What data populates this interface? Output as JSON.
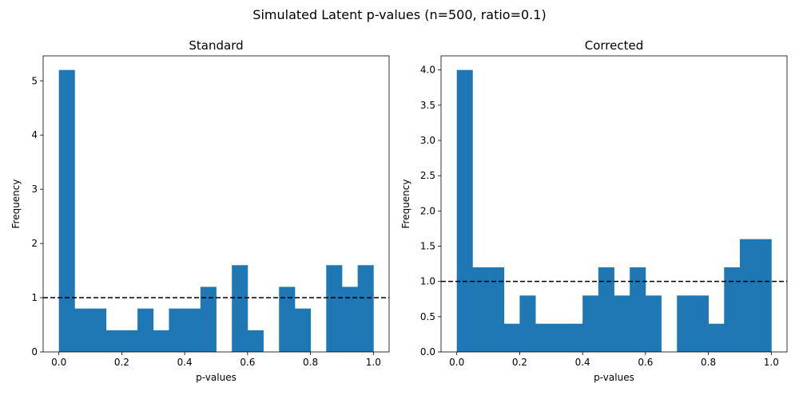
{
  "figure": {
    "suptitle": "Simulated Latent p-values (n=500, ratio=0.1)"
  },
  "style": {
    "bar_color": "#1f77b4",
    "reference_line_color": "#000000",
    "axis_color": "#000000"
  },
  "chart_data": [
    {
      "type": "bar",
      "title": "Standard",
      "xlabel": "p-values",
      "ylabel": "Frequency",
      "bin_edges": [
        0.0,
        0.05,
        0.1,
        0.15,
        0.2,
        0.25,
        0.3,
        0.35,
        0.4,
        0.45,
        0.5,
        0.55,
        0.6,
        0.65,
        0.7,
        0.75,
        0.8,
        0.85,
        0.9,
        0.95,
        1.0
      ],
      "values": [
        5.2,
        0.8,
        0.8,
        0.4,
        0.4,
        0.8,
        0.4,
        0.8,
        0.8,
        1.2,
        0.0,
        1.6,
        0.4,
        0.0,
        1.2,
        0.8,
        0.0,
        1.6,
        1.2,
        1.6
      ],
      "reference_line": {
        "y": 1.0,
        "style": "dashed"
      },
      "xlim": [
        -0.05,
        1.05
      ],
      "ylim": [
        0,
        5.46
      ],
      "xticks": [
        0.0,
        0.2,
        0.4,
        0.6,
        0.8,
        1.0
      ],
      "xtick_labels": [
        "0.0",
        "0.2",
        "0.4",
        "0.6",
        "0.8",
        "1.0"
      ],
      "yticks": [
        0,
        1,
        2,
        3,
        4,
        5
      ],
      "ytick_labels": [
        "0",
        "1",
        "2",
        "3",
        "4",
        "5"
      ],
      "grid": false,
      "legend": "none"
    },
    {
      "type": "bar",
      "title": "Corrected",
      "xlabel": "p-values",
      "ylabel": "Frequency",
      "bin_edges": [
        0.0,
        0.05,
        0.1,
        0.15,
        0.2,
        0.25,
        0.3,
        0.35,
        0.4,
        0.45,
        0.5,
        0.55,
        0.6,
        0.65,
        0.7,
        0.75,
        0.8,
        0.85,
        0.9,
        0.95,
        1.0
      ],
      "values": [
        4.0,
        1.2,
        1.2,
        0.4,
        0.8,
        0.4,
        0.4,
        0.4,
        0.8,
        1.2,
        0.8,
        1.2,
        0.8,
        0.0,
        0.8,
        0.8,
        0.4,
        1.2,
        1.6,
        1.6
      ],
      "reference_line": {
        "y": 1.0,
        "style": "dashed"
      },
      "xlim": [
        -0.05,
        1.05
      ],
      "ylim": [
        0,
        4.2
      ],
      "xticks": [
        0.0,
        0.2,
        0.4,
        0.6,
        0.8,
        1.0
      ],
      "xtick_labels": [
        "0.0",
        "0.2",
        "0.4",
        "0.6",
        "0.8",
        "1.0"
      ],
      "yticks": [
        0.0,
        0.5,
        1.0,
        1.5,
        2.0,
        2.5,
        3.0,
        3.5,
        4.0
      ],
      "ytick_labels": [
        "0.0",
        "0.5",
        "1.0",
        "1.5",
        "2.0",
        "2.5",
        "3.0",
        "3.5",
        "4.0"
      ],
      "grid": false,
      "legend": "none"
    }
  ]
}
